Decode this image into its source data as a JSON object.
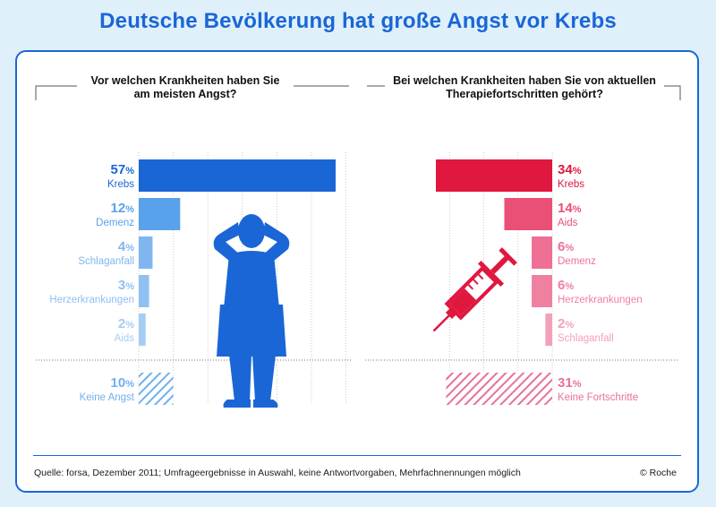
{
  "title": "Deutsche Bevölkerung hat große Angst vor Krebs",
  "footer": {
    "source": "Quelle: forsa, Dezember 2011; Umfrageergebnisse in Auswahl, keine Antwortvorgaben, Mehrfachnennungen möglich",
    "copyright": "© Roche"
  },
  "chart_data": [
    {
      "type": "bar",
      "title": "Vor welchen Krankheiten haben Sie am meisten Angst?",
      "categories": [
        "Krebs",
        "Demenz",
        "Schlaganfall",
        "Herzerkrankungen",
        "Aids",
        "Keine Angst"
      ],
      "values": [
        57,
        12,
        4,
        3,
        2,
        10
      ],
      "unit": "%",
      "colors": [
        "#1a66d6",
        "#5aa1ec",
        "#7fb6f0",
        "#8fc0f2",
        "#a4cdf4",
        "#6fb0ee"
      ],
      "hatched": [
        false,
        false,
        false,
        false,
        false,
        true
      ]
    },
    {
      "type": "bar",
      "title": "Bei welchen Krankheiten haben Sie von aktuellen Therapiefortschritten gehört?",
      "categories": [
        "Krebs",
        "Aids",
        "Demenz",
        "Herzerkrankungen",
        "Schlaganfall",
        "Keine Fortschritte"
      ],
      "values": [
        34,
        14,
        6,
        6,
        2,
        31
      ],
      "unit": "%",
      "colors": [
        "#e0173f",
        "#ea4f76",
        "#ee7094",
        "#f0809f",
        "#f3a1b9",
        "#e8709a"
      ],
      "hatched": [
        false,
        false,
        false,
        false,
        false,
        true
      ]
    }
  ],
  "icons": {
    "left": "person-icon",
    "right": "syringe-icon"
  }
}
